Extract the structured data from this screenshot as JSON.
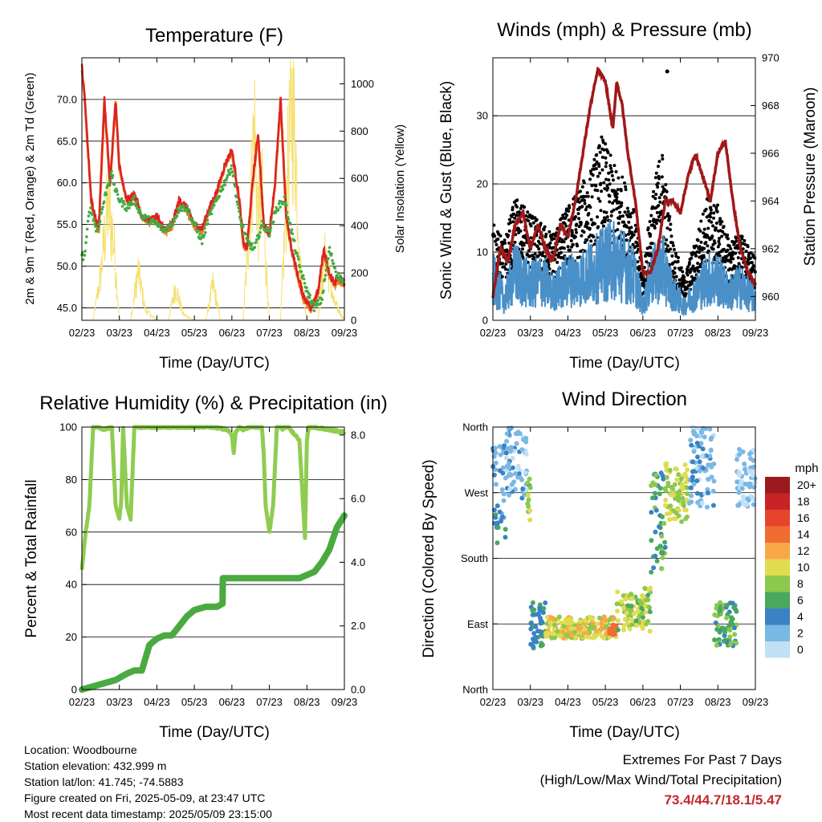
{
  "temperature": {
    "title": "Temperature (F)",
    "ylabel_left": "2m & 9m T (Red, Orange) & 2m Td (Green)",
    "ylabel_right": "Solar Insolation (Yellow)",
    "xlabel": "Time (Day/UTC)",
    "y_ticks": [
      "45.0",
      "50.0",
      "55.0",
      "60.0",
      "65.0",
      "70.0"
    ],
    "y2_ticks": [
      "0",
      "200",
      "400",
      "600",
      "800",
      "1000"
    ],
    "x_ticks": [
      "02/23",
      "03/23",
      "04/23",
      "05/23",
      "06/23",
      "07/23",
      "08/23",
      "09/23"
    ],
    "colors": {
      "t2m": "#dd2222",
      "t9m": "#f08020",
      "td": "#44aa44",
      "solar": "#f5e070"
    }
  },
  "winds": {
    "title": "Winds (mph) & Pressure (mb)",
    "ylabel_left": "Sonic Wind & Gust (Blue, Black)",
    "ylabel_right": "Station Pressure (Maroon)",
    "xlabel": "Time (Day/UTC)",
    "y_ticks": [
      "0",
      "10",
      "20",
      "30"
    ],
    "y2_ticks": [
      "960",
      "962",
      "964",
      "966",
      "968",
      "970"
    ],
    "x_ticks": [
      "02/23",
      "03/23",
      "04/23",
      "05/23",
      "06/23",
      "07/23",
      "08/23",
      "09/23"
    ],
    "colors": {
      "wind": "#4a90c8",
      "gust": "#000000",
      "pressure": "#a01818"
    }
  },
  "humidity": {
    "title": "Relative Humidity (%) & Precipitation (in)",
    "ylabel_left": "Percent & Total Rainfall",
    "xlabel": "Time (Day/UTC)",
    "y_ticks": [
      "0",
      "20",
      "40",
      "60",
      "80",
      "100"
    ],
    "y2_ticks": [
      "0.0",
      "2.0",
      "4.0",
      "6.0",
      "8.0"
    ],
    "x_ticks": [
      "02/23",
      "03/23",
      "04/23",
      "05/23",
      "06/23",
      "07/23",
      "08/23",
      "09/23"
    ],
    "colors": {
      "rh": "#8fcc50",
      "precip": "#4aaa40"
    }
  },
  "direction": {
    "title": "Wind Direction",
    "ylabel_left": "Direction (Colored By Speed)",
    "xlabel": "Time (Day/UTC)",
    "y_ticks": [
      "North",
      "East",
      "South",
      "West",
      "North"
    ],
    "x_ticks": [
      "02/23",
      "03/23",
      "04/23",
      "05/23",
      "06/23",
      "07/23",
      "08/23",
      "09/23"
    ],
    "legend_title": "mph",
    "legend_labels": [
      "20+",
      "18",
      "16",
      "14",
      "12",
      "10",
      "8",
      "6",
      "4",
      "2",
      "0"
    ],
    "legend_colors": [
      "#9b1a1f",
      "#c82428",
      "#e8442c",
      "#f06c30",
      "#f8a848",
      "#e0dc50",
      "#8cc84c",
      "#48a860",
      "#3a82c4",
      "#7ab8e4",
      "#bfe0f5"
    ]
  },
  "info": {
    "location": "Location: Woodbourne",
    "elevation": "Station elevation: 432.999 m",
    "latlon": "Station lat/lon: 41.745; -74.5883",
    "created": "Figure created on Fri, 2025-05-09, at 23:47 UTC",
    "recent": "Most recent data timestamp: 2025/05/09 23:15:00"
  },
  "extremes": {
    "line1": "Extremes For Past 7 Days",
    "line2": "(High/Low/Max Wind/Total Precipitation)",
    "values": "73.4/44.7/18.1/5.47"
  },
  "chart_data": [
    {
      "type": "line",
      "title": "Temperature (F)",
      "xlabel": "Time (Day/UTC)",
      "ylabel": "2m & 9m T (Red, Orange) & 2m Td (Green)",
      "y2label": "Solar Insolation (Yellow)",
      "x_ticks": [
        "02/23",
        "03/23",
        "04/23",
        "05/23",
        "06/23",
        "07/23",
        "08/23",
        "09/23"
      ],
      "xlim": [
        0,
        7
      ],
      "ylim": [
        43.5,
        75.0
      ],
      "y2lim": [
        0,
        1110
      ],
      "series": [
        {
          "name": "2m T",
          "x": [
            0,
            0.08,
            0.15,
            0.25,
            0.35,
            0.45,
            0.6,
            0.75,
            0.9,
            1.0,
            1.2,
            1.4,
            1.6,
            1.8,
            2.0,
            2.2,
            2.4,
            2.6,
            2.8,
            3.0,
            3.2,
            3.4,
            3.6,
            3.8,
            4.0,
            4.2,
            4.3,
            4.4,
            4.55,
            4.7,
            4.85,
            5.0,
            5.15,
            5.3,
            5.45,
            5.6,
            5.75,
            5.9,
            6.1,
            6.3,
            6.45,
            6.6,
            6.75,
            6.85,
            7.0
          ],
          "y": [
            74,
            70,
            65,
            58,
            56,
            54.5,
            70,
            60,
            70,
            62,
            58,
            58.5,
            56,
            55.5,
            56,
            54.3,
            55,
            58,
            57,
            55,
            54.5,
            57,
            59,
            62,
            64,
            58,
            53,
            52,
            60,
            66,
            55,
            54,
            60,
            70,
            56,
            52,
            49,
            46.5,
            45,
            47,
            52,
            49,
            48,
            48.5,
            48
          ]
        },
        {
          "name": "2m Td",
          "x": [
            0,
            0.05,
            0.1,
            0.2,
            0.3,
            0.4,
            0.5,
            0.6,
            0.7,
            0.8,
            0.9,
            1.0,
            1.2,
            1.4,
            1.6,
            1.8,
            2.0,
            2.2,
            2.4,
            2.6,
            2.8,
            3.0,
            3.2,
            3.4,
            3.6,
            3.8,
            4.0,
            4.2,
            4.4,
            4.6,
            4.8,
            5.0,
            5.2,
            5.4,
            5.6,
            5.8,
            6.0,
            6.2,
            6.4,
            6.6,
            6.8,
            7.0
          ],
          "y": [
            51.5,
            51,
            52,
            57,
            56,
            54,
            56,
            58,
            60,
            61,
            59,
            58,
            57,
            58,
            56,
            55.5,
            55,
            54.3,
            55,
            57,
            57,
            55,
            53,
            56,
            58,
            60,
            62,
            56,
            53,
            52,
            55,
            54,
            57,
            58,
            54,
            50,
            47,
            45,
            46,
            52,
            49,
            48
          ]
        },
        {
          "name": "Solar Insolation",
          "axis": "y2",
          "x": [
            0,
            0.3,
            0.5,
            0.7,
            0.85,
            1.0,
            1.3,
            1.5,
            1.7,
            2.0,
            2.3,
            2.5,
            2.7,
            3.0,
            3.3,
            3.5,
            3.7,
            4.0,
            4.3,
            4.5,
            4.6,
            4.7,
            4.8,
            5.0,
            5.3,
            5.5,
            5.6,
            5.7,
            5.8,
            6.0,
            6.3,
            6.5,
            6.7,
            7.0
          ],
          "y": [
            0,
            0,
            230,
            600,
            400,
            0,
            0,
            250,
            50,
            0,
            0,
            170,
            30,
            0,
            0,
            180,
            0,
            0,
            0,
            600,
            1010,
            500,
            650,
            0,
            0,
            800,
            1090,
            900,
            300,
            0,
            0,
            350,
            100,
            0
          ]
        }
      ]
    },
    {
      "type": "line",
      "title": "Winds (mph) & Pressure (mb)",
      "xlabel": "Time (Day/UTC)",
      "ylabel": "Sonic Wind & Gust (Blue, Black)",
      "y2label": "Station Pressure (Maroon)",
      "x_ticks": [
        "02/23",
        "03/23",
        "04/23",
        "05/23",
        "06/23",
        "07/23",
        "08/23",
        "09/23"
      ],
      "xlim": [
        0,
        7
      ],
      "ylim": [
        0,
        38.5
      ],
      "y2lim": [
        959.0,
        970.0
      ],
      "series": [
        {
          "name": "Pressure",
          "axis": "y2",
          "x": [
            0,
            0.2,
            0.4,
            0.6,
            0.8,
            1.0,
            1.2,
            1.4,
            1.6,
            1.8,
            2.0,
            2.2,
            2.4,
            2.6,
            2.8,
            3.0,
            3.2,
            3.3,
            3.45,
            3.6,
            3.8,
            4.0,
            4.2,
            4.4,
            4.6,
            4.8,
            5.0,
            5.2,
            5.4,
            5.6,
            5.8,
            6.0,
            6.2,
            6.4,
            6.6,
            6.8,
            7.0
          ],
          "y": [
            960,
            962,
            961.5,
            963,
            963.5,
            962,
            963,
            962,
            961.5,
            963,
            962.5,
            964,
            966,
            968,
            969.5,
            969,
            967,
            969,
            968,
            966,
            964,
            961,
            961,
            962,
            964,
            964,
            963.5,
            965,
            966,
            965,
            964,
            966,
            966.5,
            964,
            962,
            961,
            960.5
          ]
        },
        {
          "name": "Sonic Wind",
          "x": [
            0,
            0.3,
            0.6,
            1.0,
            1.3,
            1.6,
            2.0,
            2.3,
            2.6,
            2.9,
            3.2,
            3.5,
            3.8,
            4.0,
            4.2,
            4.5,
            4.8,
            5.1,
            5.4,
            5.7,
            6.0,
            6.3,
            6.6,
            7.0
          ],
          "y": [
            6,
            3,
            7,
            5,
            6,
            4,
            6,
            6,
            7,
            8,
            9,
            8,
            6,
            2,
            6,
            8,
            4,
            2,
            4,
            6,
            6,
            4,
            5,
            3
          ]
        },
        {
          "name": "Gust",
          "x": [
            0,
            0.3,
            0.6,
            1.0,
            1.3,
            1.6,
            2.0,
            2.3,
            2.6,
            2.9,
            3.2,
            3.5,
            3.8,
            4.0,
            4.2,
            4.5,
            4.8,
            5.1,
            5.4,
            5.7,
            6.0,
            6.3,
            6.6,
            7.0
          ],
          "y": [
            11,
            9,
            14,
            12,
            11,
            10,
            13,
            15,
            17,
            21,
            18,
            16,
            12,
            5,
            13,
            20,
            9,
            5,
            9,
            14,
            13,
            9,
            10,
            7
          ]
        }
      ]
    },
    {
      "type": "line",
      "title": "Relative Humidity (%) & Precipitation (in)",
      "xlabel": "Time (Day/UTC)",
      "ylabel": "Percent & Total Rainfall",
      "x_ticks": [
        "02/23",
        "03/23",
        "04/23",
        "05/23",
        "06/23",
        "07/23",
        "08/23",
        "09/23"
      ],
      "xlim": [
        0,
        7
      ],
      "ylim": [
        0,
        100
      ],
      "y2lim": [
        0,
        8.25
      ],
      "series": [
        {
          "name": "Relative Humidity",
          "x": [
            0,
            0.1,
            0.2,
            0.3,
            0.45,
            0.6,
            0.8,
            0.9,
            1.0,
            1.05,
            1.1,
            1.2,
            1.3,
            1.4,
            1.5,
            2.0,
            3.0,
            3.5,
            3.9,
            4.0,
            4.05,
            4.1,
            4.2,
            4.3,
            4.5,
            4.8,
            4.85,
            4.9,
            5.0,
            5.1,
            5.2,
            5.3,
            5.35,
            5.4,
            5.5,
            5.8,
            5.9,
            5.95,
            6.0,
            6.05,
            6.1,
            6.2,
            7.0
          ],
          "y": [
            46,
            60,
            70,
            100,
            100,
            99,
            100,
            70,
            65,
            72,
            100,
            70,
            65,
            100,
            100,
            100,
            100,
            100,
            99,
            97,
            90,
            98,
            100,
            99,
            100,
            100,
            90,
            70,
            60,
            70,
            100,
            100,
            99,
            100,
            100,
            95,
            70,
            58,
            95,
            100,
            100,
            100,
            98
          ]
        },
        {
          "name": "Total Precipitation",
          "axis": "y2",
          "x": [
            0,
            0.3,
            0.6,
            0.9,
            1.2,
            1.4,
            1.6,
            1.8,
            2.0,
            2.2,
            2.4,
            2.6,
            2.8,
            3.0,
            3.3,
            3.6,
            3.75,
            3.76,
            4.0,
            4.5,
            5.0,
            5.5,
            5.8,
            6.0,
            6.2,
            6.4,
            6.6,
            6.8,
            7.0
          ],
          "y": [
            0,
            0.1,
            0.2,
            0.3,
            0.5,
            0.6,
            0.6,
            1.4,
            1.6,
            1.7,
            1.7,
            2.0,
            2.3,
            2.5,
            2.6,
            2.6,
            2.7,
            3.5,
            3.5,
            3.5,
            3.5,
            3.5,
            3.5,
            3.6,
            3.7,
            4.0,
            4.4,
            5.1,
            5.47
          ]
        }
      ]
    },
    {
      "type": "scatter",
      "title": "Wind Direction",
      "xlabel": "Time (Day/UTC)",
      "ylabel": "Direction (Colored By Speed)",
      "x_ticks": [
        "02/23",
        "03/23",
        "04/23",
        "05/23",
        "06/23",
        "07/23",
        "08/23",
        "09/23"
      ],
      "y_ticks": [
        "North",
        "East",
        "South",
        "West",
        "North"
      ],
      "xlim": [
        0,
        7
      ],
      "ylim": [
        0,
        360
      ],
      "clusters": [
        {
          "x": [
            0.0,
            0.35
          ],
          "dir": [
            200,
            340
          ],
          "speed": [
            2,
            6
          ]
        },
        {
          "x": [
            0.35,
            0.9
          ],
          "dir": [
            260,
            360
          ],
          "speed": [
            0,
            4
          ]
        },
        {
          "x": [
            0.9,
            1.0
          ],
          "dir": [
            230,
            290
          ],
          "speed": [
            6,
            10
          ]
        },
        {
          "x": [
            1.0,
            1.4
          ],
          "dir": [
            55,
            120
          ],
          "speed": [
            3,
            6
          ]
        },
        {
          "x": [
            1.4,
            3.3
          ],
          "dir": [
            70,
            100
          ],
          "speed": [
            8,
            12
          ]
        },
        {
          "x": [
            3.1,
            3.3
          ],
          "dir": [
            75,
            90
          ],
          "speed": [
            13,
            15
          ]
        },
        {
          "x": [
            3.3,
            4.2
          ],
          "dir": [
            80,
            140
          ],
          "speed": [
            6,
            11
          ]
        },
        {
          "x": [
            4.2,
            4.6
          ],
          "dir": [
            150,
            300
          ],
          "speed": [
            3,
            8
          ]
        },
        {
          "x": [
            4.6,
            5.2
          ],
          "dir": [
            230,
            310
          ],
          "speed": [
            7,
            11
          ]
        },
        {
          "x": [
            5.2,
            5.9
          ],
          "dir": [
            250,
            360
          ],
          "speed": [
            0,
            4
          ]
        },
        {
          "x": [
            5.9,
            6.5
          ],
          "dir": [
            60,
            120
          ],
          "speed": [
            4,
            9
          ]
        },
        {
          "x": [
            6.5,
            7.0
          ],
          "dir": [
            250,
            330
          ],
          "speed": [
            0,
            3
          ]
        }
      ],
      "colorbar": {
        "label": "mph",
        "levels": [
          0,
          2,
          4,
          6,
          8,
          10,
          12,
          14,
          16,
          18,
          20
        ]
      }
    }
  ]
}
